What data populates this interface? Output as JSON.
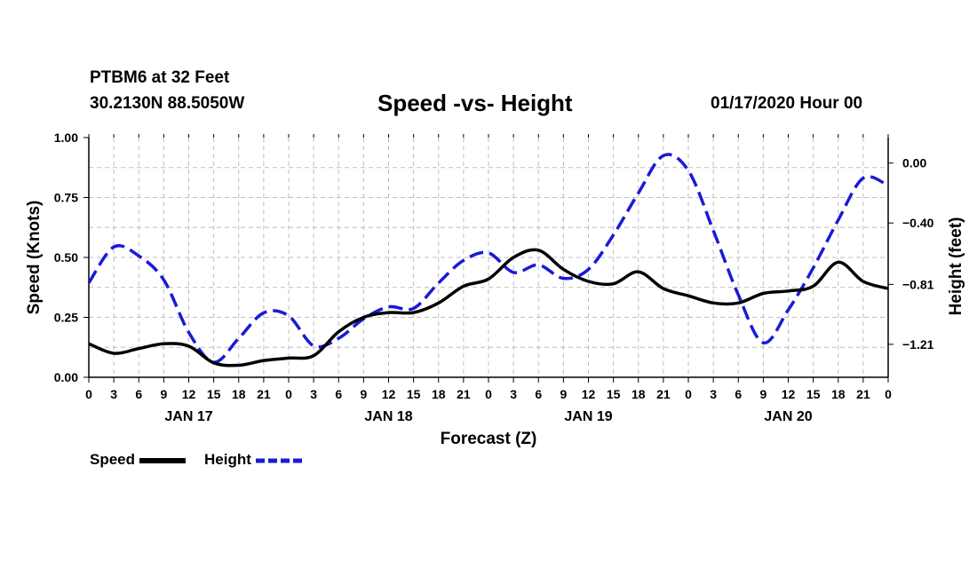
{
  "header": {
    "station": "PTBM6 at 32 Feet",
    "location": "30.2130N 88.5050W",
    "date_label": "01/17/2020 Hour 00"
  },
  "legend": {
    "speed_label": "Speed",
    "height_label": "Height"
  },
  "colors": {
    "speed": "#000000",
    "height": "#1a1ad6",
    "grid": "#bdbdbd"
  },
  "chart_data": {
    "type": "line",
    "title": "Speed -vs- Height",
    "xlabel": "Forecast (Z)",
    "ylabel": "Speed (Knots)",
    "y2label": "Height (feet)",
    "x_unit": "hours from 0Z JAN 17",
    "xlim": [
      0,
      96
    ],
    "ylim": [
      0,
      1.0
    ],
    "y2lim": [
      -1.43,
      0.17
    ],
    "grid": true,
    "legend_position": "bottom-left",
    "x_ticks": [
      0,
      3,
      6,
      9,
      12,
      15,
      18,
      21,
      24,
      27,
      30,
      33,
      36,
      39,
      42,
      45,
      48,
      51,
      54,
      57,
      60,
      63,
      66,
      69,
      72,
      75,
      78,
      81,
      84,
      87,
      90,
      93,
      96
    ],
    "x_tick_labels": [
      "0",
      "3",
      "6",
      "9",
      "12",
      "15",
      "18",
      "21",
      "0",
      "3",
      "6",
      "9",
      "12",
      "15",
      "18",
      "21",
      "0",
      "3",
      "6",
      "9",
      "12",
      "15",
      "18",
      "21",
      "0",
      "3",
      "6",
      "9",
      "12",
      "15",
      "18",
      "21",
      "0"
    ],
    "day_labels": [
      {
        "x": 12,
        "label": "JAN 17"
      },
      {
        "x": 36,
        "label": "JAN 18"
      },
      {
        "x": 60,
        "label": "JAN 19"
      },
      {
        "x": 84,
        "label": "JAN 20"
      }
    ],
    "y_ticks": [
      0.0,
      0.25,
      0.5,
      0.75,
      1.0
    ],
    "y_tick_labels": [
      "0.00",
      "0.25",
      "0.50",
      "0.75",
      "1.00"
    ],
    "y2_ticks": [
      0.0,
      -0.4,
      -0.81,
      -1.21
    ],
    "y2_tick_labels": [
      "0.00",
      "−0.40",
      "−0.81",
      "−1.21"
    ],
    "series": [
      {
        "name": "Speed",
        "axis": "left",
        "style": "solid",
        "x": [
          0,
          3,
          6,
          9,
          12,
          15,
          18,
          21,
          24,
          27,
          30,
          33,
          36,
          39,
          42,
          45,
          48,
          51,
          54,
          57,
          60,
          63,
          66,
          69,
          72,
          75,
          78,
          81,
          84,
          87,
          90,
          93,
          96
        ],
        "values": [
          0.14,
          0.1,
          0.12,
          0.14,
          0.13,
          0.06,
          0.05,
          0.07,
          0.08,
          0.09,
          0.19,
          0.25,
          0.27,
          0.27,
          0.31,
          0.38,
          0.41,
          0.5,
          0.53,
          0.45,
          0.4,
          0.39,
          0.44,
          0.37,
          0.34,
          0.31,
          0.31,
          0.35,
          0.36,
          0.38,
          0.48,
          0.4,
          0.37
        ]
      },
      {
        "name": "Height",
        "axis": "right",
        "style": "dashed",
        "x": [
          0,
          3,
          6,
          9,
          12,
          15,
          18,
          21,
          24,
          27,
          30,
          33,
          36,
          39,
          42,
          45,
          48,
          51,
          54,
          57,
          60,
          63,
          66,
          69,
          72,
          75,
          78,
          81,
          84,
          87,
          90,
          93,
          96
        ],
        "values": [
          -0.8,
          -0.56,
          -0.62,
          -0.78,
          -1.13,
          -1.33,
          -1.17,
          -1.0,
          -1.02,
          -1.22,
          -1.17,
          -1.04,
          -0.96,
          -0.97,
          -0.8,
          -0.65,
          -0.6,
          -0.73,
          -0.68,
          -0.77,
          -0.71,
          -0.48,
          -0.2,
          0.05,
          -0.05,
          -0.45,
          -0.88,
          -1.2,
          -0.98,
          -0.7,
          -0.38,
          -0.1,
          -0.15
        ]
      }
    ]
  }
}
